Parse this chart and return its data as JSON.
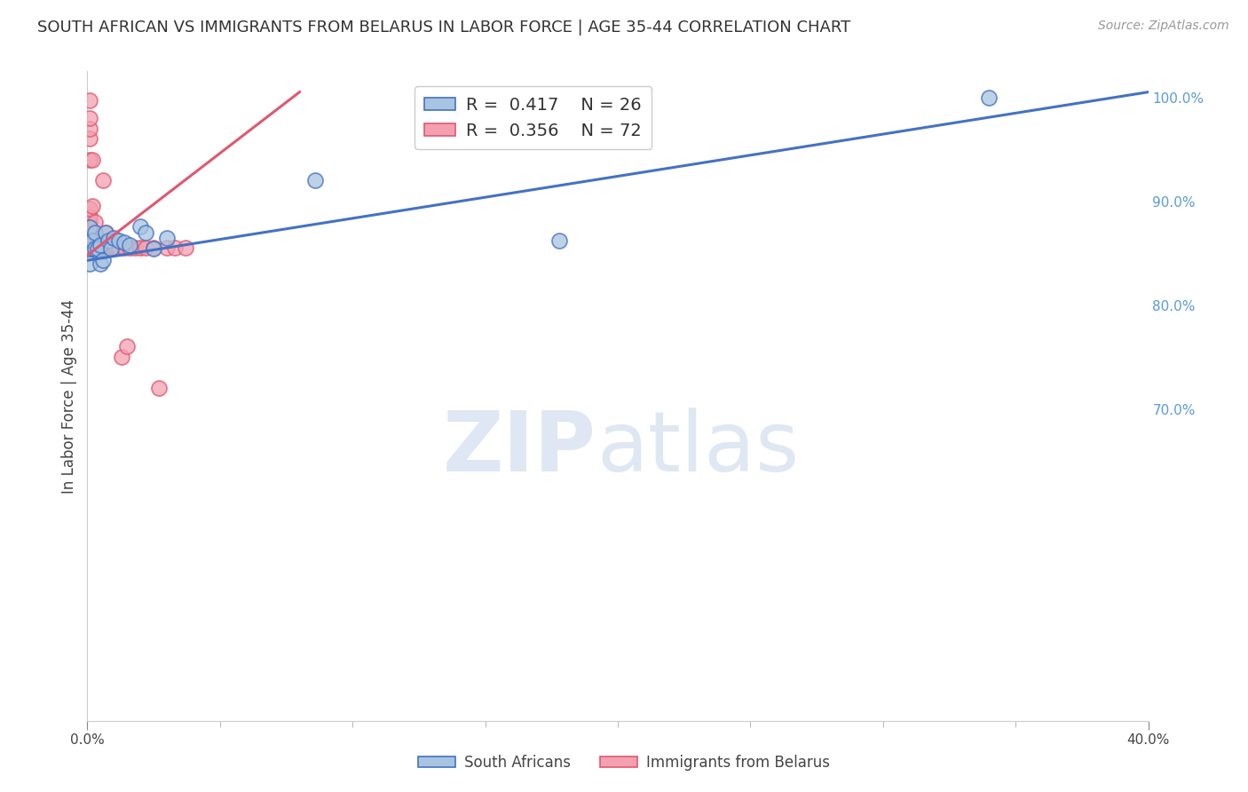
{
  "title": "SOUTH AFRICAN VS IMMIGRANTS FROM BELARUS IN LABOR FORCE | AGE 35-44 CORRELATION CHART",
  "source": "Source: ZipAtlas.com",
  "ylabel": "In Labor Force | Age 35-44",
  "xmin": 0.0,
  "xmax": 0.4,
  "ymin": 0.4,
  "ymax": 1.025,
  "blue_R": 0.417,
  "blue_N": 26,
  "pink_R": 0.356,
  "pink_N": 72,
  "blue_scatter_x": [
    0.001,
    0.001,
    0.001,
    0.002,
    0.002,
    0.003,
    0.003,
    0.004,
    0.005,
    0.005,
    0.006,
    0.007,
    0.008,
    0.009,
    0.01,
    0.012,
    0.014,
    0.016,
    0.02,
    0.022,
    0.025,
    0.03,
    0.086,
    0.178,
    0.34
  ],
  "blue_scatter_y": [
    0.84,
    0.862,
    0.875,
    0.854,
    0.862,
    0.854,
    0.87,
    0.854,
    0.84,
    0.858,
    0.843,
    0.87,
    0.862,
    0.854,
    0.865,
    0.862,
    0.86,
    0.858,
    0.876,
    0.87,
    0.854,
    0.865,
    0.92,
    0.862,
    1.0
  ],
  "pink_scatter_x": [
    0.001,
    0.001,
    0.001,
    0.001,
    0.001,
    0.001,
    0.001,
    0.001,
    0.001,
    0.001,
    0.001,
    0.001,
    0.001,
    0.001,
    0.002,
    0.002,
    0.002,
    0.002,
    0.002,
    0.002,
    0.003,
    0.003,
    0.003,
    0.003,
    0.004,
    0.004,
    0.005,
    0.005,
    0.006,
    0.006,
    0.007,
    0.007,
    0.008,
    0.008,
    0.009,
    0.01,
    0.01,
    0.011,
    0.012,
    0.013,
    0.014,
    0.015,
    0.016,
    0.018,
    0.02,
    0.022,
    0.025,
    0.027,
    0.03,
    0.033,
    0.037
  ],
  "pink_scatter_y": [
    0.855,
    0.86,
    0.863,
    0.867,
    0.87,
    0.875,
    0.88,
    0.885,
    0.893,
    0.94,
    0.96,
    0.97,
    0.98,
    0.997,
    0.855,
    0.858,
    0.863,
    0.87,
    0.895,
    0.94,
    0.855,
    0.86,
    0.863,
    0.88,
    0.855,
    0.858,
    0.855,
    0.86,
    0.855,
    0.92,
    0.855,
    0.87,
    0.855,
    0.86,
    0.855,
    0.855,
    0.858,
    0.855,
    0.855,
    0.75,
    0.855,
    0.76,
    0.855,
    0.855,
    0.855,
    0.855,
    0.855,
    0.72,
    0.855,
    0.855,
    0.855
  ],
  "blue_line_x": [
    0.0,
    0.4
  ],
  "blue_line_y": [
    0.843,
    1.005
  ],
  "pink_line_x": [
    0.0,
    0.08
  ],
  "pink_line_y": [
    0.848,
    1.005
  ],
  "watermark_zip": "ZIP",
  "watermark_atlas": "atlas",
  "background_color": "#ffffff",
  "blue_color": "#a8c4e0",
  "pink_color": "#f4a0b0",
  "blue_line_color": "#4472c4",
  "pink_line_color": "#e05870",
  "grid_color": "#d3d3d3",
  "right_axis_color": "#5b9bd5",
  "title_fontsize": 13,
  "source_fontsize": 10,
  "axis_tick_fontsize": 11,
  "legend_fontsize": 14,
  "ylabel_fontsize": 12
}
